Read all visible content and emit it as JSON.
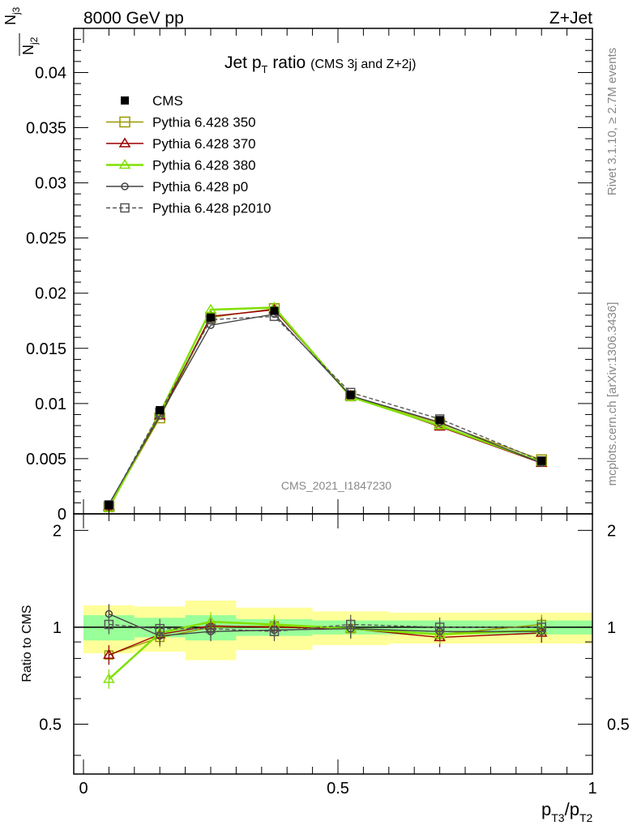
{
  "header": {
    "energy": "8000 GeV pp",
    "process": "Z+Jet"
  },
  "side_labels": {
    "rivet": "Rivet 3.1.10, ≥ 2.7M events",
    "mcplots": "mcplots.cern.ch [arXiv:1306.3436]"
  },
  "chart_data": {
    "type": "line",
    "title_main": "Jet p",
    "title_sub": "T",
    "title_suffix": " ratio",
    "title_note": "(CMS 3j and Z+2j)",
    "watermark": "CMS_2021_I1847230",
    "ylabel_num": "N",
    "ylabel_num_sub": "j3",
    "ylabel_den": "N",
    "ylabel_den_sub": "j2",
    "xlabel_a": "p",
    "xlabel_a_sub": "T3",
    "xlabel_sep": "/p",
    "xlabel_b_sub": "T2",
    "ratio_ylabel": "Ratio to CMS",
    "xlim": [
      0,
      1
    ],
    "ylim": [
      0,
      0.044
    ],
    "ratio_ylim": [
      0.35,
      2.25
    ],
    "x_ticks": [
      "0",
      "0.5",
      "1"
    ],
    "y_ticks": [
      "0",
      "0.005",
      "0.01",
      "0.015",
      "0.02",
      "0.025",
      "0.03",
      "0.035",
      "0.04"
    ],
    "ratio_ticks": [
      "0.5",
      "1",
      "2"
    ],
    "x": [
      0.05,
      0.15,
      0.25,
      0.375,
      0.525,
      0.7,
      0.9
    ],
    "bin_edges": [
      0,
      0.1,
      0.2,
      0.3,
      0.45,
      0.6,
      0.8,
      1.0
    ],
    "data": {
      "name": "CMS",
      "values": [
        0.0008,
        0.0094,
        0.0178,
        0.0184,
        0.0108,
        0.0085,
        0.0048
      ],
      "band_inner": [
        0.09,
        0.07,
        0.09,
        0.06,
        0.05,
        0.05,
        0.05
      ],
      "band_outer": [
        0.17,
        0.16,
        0.21,
        0.15,
        0.12,
        0.11,
        0.11
      ]
    },
    "series": [
      {
        "name": "Pythia 6.428 350",
        "color": "#999900",
        "marker": "square-open",
        "dash": false,
        "values": [
          0.00065,
          0.0087,
          0.0178,
          0.0186,
          0.0107,
          0.0082,
          0.0049
        ],
        "ratio": [
          0.82,
          0.93,
          1.0,
          1.01,
          0.99,
          0.95,
          1.02
        ]
      },
      {
        "name": "Pythia 6.428 370",
        "color": "#990000",
        "marker": "triangle-open",
        "dash": false,
        "values": [
          0.00065,
          0.0089,
          0.0179,
          0.0185,
          0.0107,
          0.0079,
          0.0046
        ],
        "ratio": [
          0.82,
          0.95,
          1.01,
          1.0,
          0.99,
          0.93,
          0.96
        ]
      },
      {
        "name": "Pythia 6.428 380",
        "color": "#80e000",
        "marker": "triangle-open",
        "dash": false,
        "values": [
          0.00055,
          0.0091,
          0.0185,
          0.0187,
          0.0106,
          0.008,
          0.0047
        ],
        "ratio": [
          0.69,
          0.96,
          1.04,
          1.02,
          0.99,
          0.95,
          0.98
        ]
      },
      {
        "name": "Pythia 6.428 p0",
        "color": "#444444",
        "marker": "circle-open",
        "dash": false,
        "values": [
          0.00088,
          0.0089,
          0.0171,
          0.0181,
          0.0107,
          0.0083,
          0.0046
        ],
        "ratio": [
          1.1,
          0.94,
          0.97,
          0.98,
          0.99,
          0.97,
          0.97
        ]
      },
      {
        "name": "Pythia 6.428 p2010",
        "color": "#555555",
        "marker": "square-open",
        "dash": true,
        "values": [
          0.00082,
          0.0092,
          0.0176,
          0.0179,
          0.011,
          0.0086,
          0.0048
        ],
        "ratio": [
          1.02,
          0.99,
          0.99,
          0.97,
          1.02,
          1.0,
          1.0
        ]
      }
    ],
    "legend_position": "top-left"
  }
}
